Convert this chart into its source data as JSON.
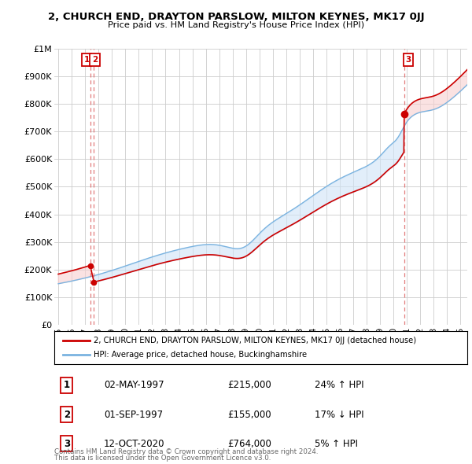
{
  "title": "2, CHURCH END, DRAYTON PARSLOW, MILTON KEYNES, MK17 0JJ",
  "subtitle": "Price paid vs. HM Land Registry's House Price Index (HPI)",
  "red_label": "2, CHURCH END, DRAYTON PARSLOW, MILTON KEYNES, MK17 0JJ (detached house)",
  "blue_label": "HPI: Average price, detached house, Buckinghamshire",
  "footer1": "Contains HM Land Registry data © Crown copyright and database right 2024.",
  "footer2": "This data is licensed under the Open Government Licence v3.0.",
  "transactions": [
    {
      "num": 1,
      "date": "02-MAY-1997",
      "price": "£215,000",
      "change": "24% ↑ HPI",
      "year": 1997.37,
      "value": 215000
    },
    {
      "num": 2,
      "date": "01-SEP-1997",
      "price": "£155,000",
      "change": "17% ↓ HPI",
      "year": 1997.66,
      "value": 155000
    },
    {
      "num": 3,
      "date": "12-OCT-2020",
      "price": "£764,000",
      "change": "5% ↑ HPI",
      "year": 2020.79,
      "value": 764000
    }
  ],
  "ylim": [
    0,
    1000000
  ],
  "xlim_start": 1994.7,
  "xlim_end": 2025.5,
  "yticks": [
    0,
    100000,
    200000,
    300000,
    400000,
    500000,
    600000,
    700000,
    800000,
    900000,
    1000000
  ],
  "ytick_labels": [
    "£0",
    "£100K",
    "£200K",
    "£300K",
    "£400K",
    "£500K",
    "£600K",
    "£700K",
    "£800K",
    "£900K",
    "£1M"
  ],
  "xticks": [
    1995,
    1996,
    1997,
    1998,
    1999,
    2000,
    2001,
    2002,
    2003,
    2004,
    2005,
    2006,
    2007,
    2008,
    2009,
    2010,
    2011,
    2012,
    2013,
    2014,
    2015,
    2016,
    2017,
    2018,
    2019,
    2020,
    2021,
    2022,
    2023,
    2024,
    2025
  ],
  "red_color": "#cc0000",
  "blue_color": "#7ab3e0",
  "dashed_color": "#dd6666",
  "background_color": "#ffffff",
  "grid_color": "#cccccc",
  "shade_blue": "#d0e4f7",
  "shade_red": "#f7d0d0"
}
